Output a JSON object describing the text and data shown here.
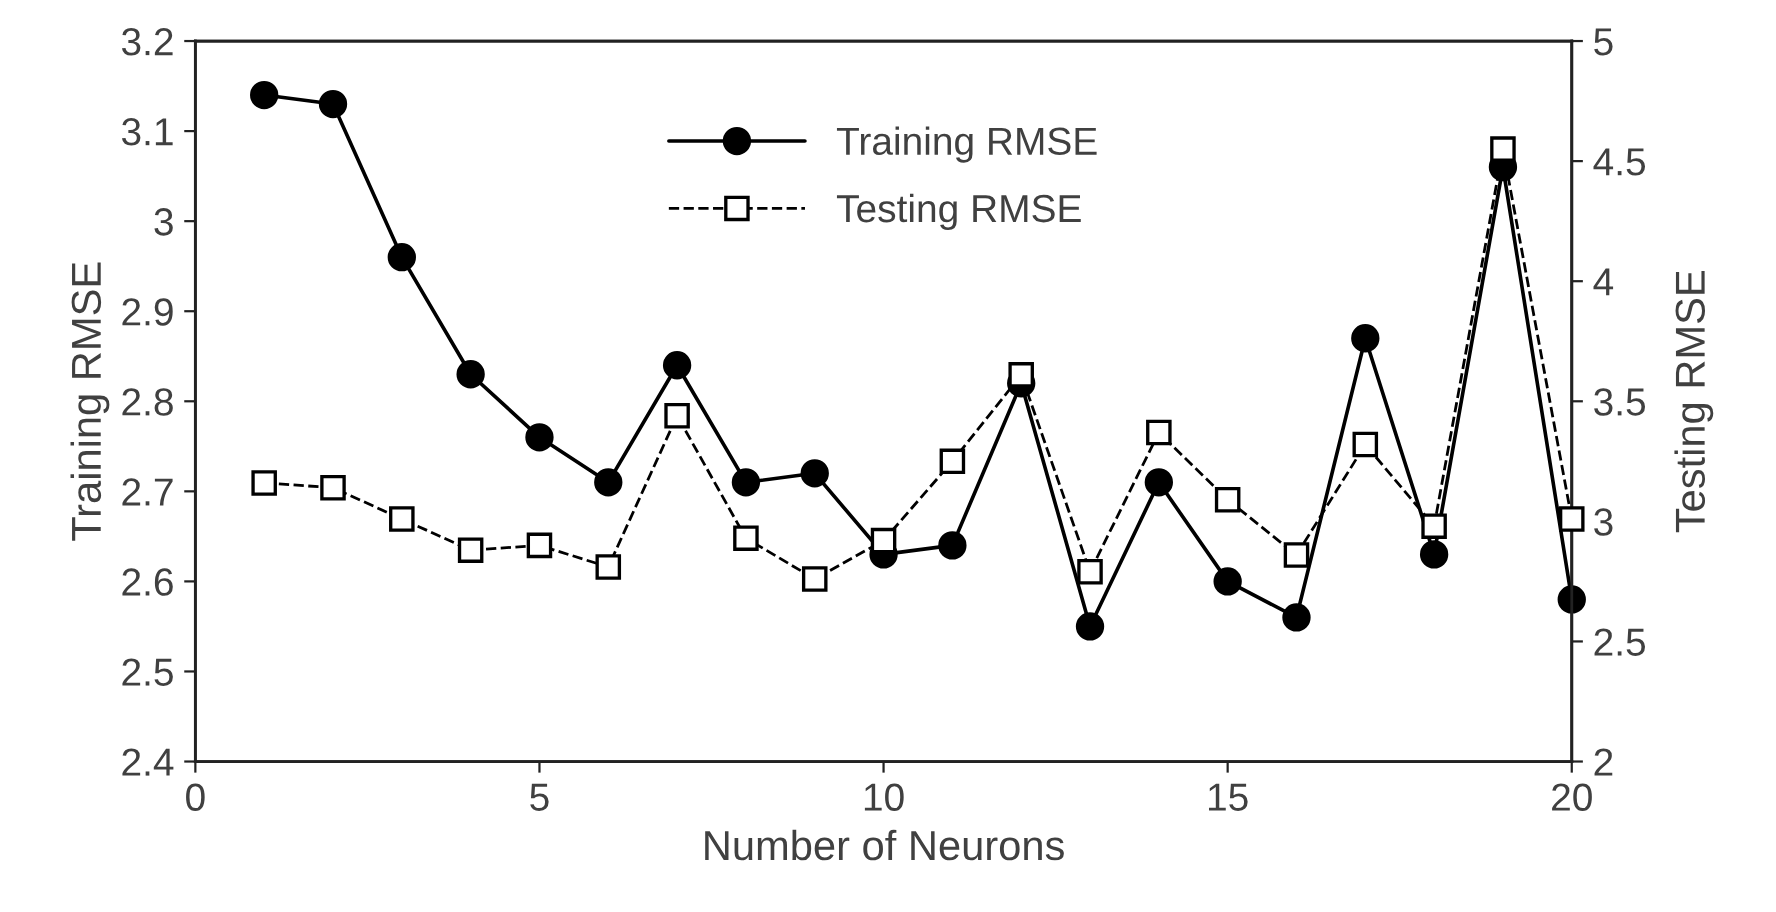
{
  "chart_data": {
    "type": "line",
    "xlabel": "Number of Neurons",
    "ylabel": "Training RMSE",
    "y2label": "Testing RMSE",
    "x": [
      1,
      2,
      3,
      4,
      5,
      6,
      7,
      8,
      9,
      10,
      11,
      12,
      13,
      14,
      15,
      16,
      17,
      18,
      19,
      20
    ],
    "series": [
      {
        "name": "Training RMSE",
        "color": "#000000",
        "marker": "circle",
        "line_style": "solid",
        "values": [
          3.14,
          3.13,
          2.96,
          2.83,
          2.76,
          2.71,
          2.84,
          2.71,
          2.72,
          2.63,
          2.64,
          2.82,
          2.55,
          2.71,
          2.6,
          2.56,
          2.87,
          2.63,
          3.06,
          2.58
        ]
      },
      {
        "name": "Testing RMSE",
        "color": "#000000",
        "marker": "square",
        "line_style": "dashed",
        "axis": "y2",
        "values": [
          3.16,
          3.14,
          3.01,
          2.88,
          2.9,
          2.81,
          3.44,
          2.93,
          2.76,
          2.92,
          3.25,
          3.61,
          2.79,
          3.37,
          3.09,
          2.86,
          3.32,
          2.98,
          4.55,
          3.01
        ]
      }
    ],
    "xlim": [
      0,
      20
    ],
    "xticks": [
      0,
      5,
      10,
      15,
      20
    ],
    "ylim": [
      2.4,
      3.2
    ],
    "yticks": [
      2.4,
      2.5,
      2.6,
      2.7,
      2.8,
      2.9,
      3,
      3.1,
      3.2
    ],
    "y2lim": [
      2,
      5
    ],
    "y2ticks": [
      2,
      2.5,
      3,
      3.5,
      4,
      4.5,
      5
    ],
    "grid": false,
    "legend": "top"
  }
}
